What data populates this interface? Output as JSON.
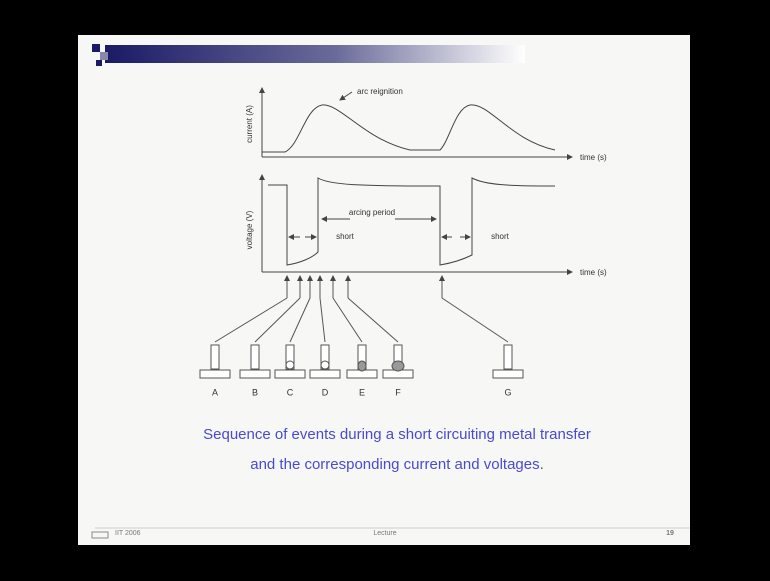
{
  "diagram": {
    "current_axis_label": "current (A)",
    "arc_reignition": "arc reignition",
    "current_time_label": "time (s)",
    "voltage_axis_label": "voltage (V)",
    "arcing_period": "arcing period",
    "short_1": "short",
    "short_2": "short",
    "voltage_time_label": "time (s)",
    "events": [
      "A",
      "B",
      "C",
      "D",
      "E",
      "F",
      "G"
    ]
  },
  "caption": [
    "Sequence of events during a short circuiting metal transfer",
    "and the corresponding current and voltages."
  ],
  "footer": {
    "left": "IIT 2006",
    "center": "Lecture",
    "page": "19"
  }
}
